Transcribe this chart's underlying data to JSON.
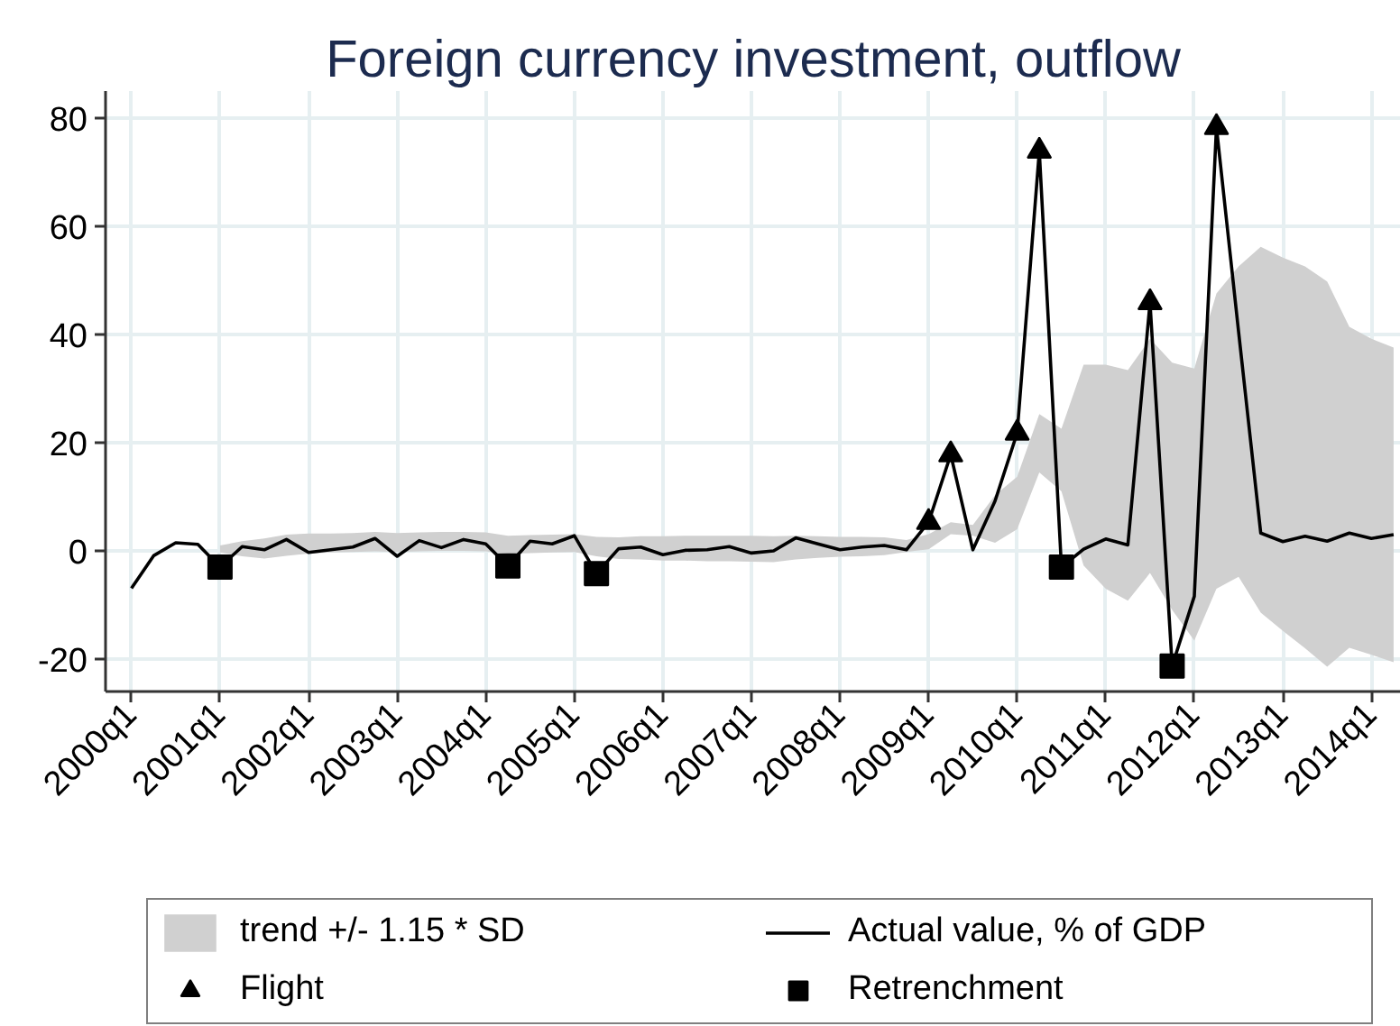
{
  "chart_data": {
    "type": "line",
    "title": "Foreign currency investment, outflow",
    "categories": [
      "2000q1",
      null,
      null,
      null,
      "2001q1",
      null,
      null,
      null,
      "2002q1",
      null,
      null,
      null,
      "2003q1",
      null,
      null,
      null,
      "2004q1",
      null,
      null,
      null,
      "2005q1",
      null,
      null,
      null,
      "2006q1",
      null,
      null,
      null,
      "2007q1",
      null,
      null,
      null,
      "2008q1",
      null,
      null,
      null,
      "2009q1",
      null,
      null,
      null,
      "2010q1",
      null,
      null,
      null,
      "2011q1",
      null,
      null,
      null,
      "2012q1",
      null,
      null,
      null,
      "2013q1",
      null,
      null,
      null,
      "2014q1",
      null
    ],
    "ylim": [
      -26,
      85
    ],
    "yticks": [
      -20,
      0,
      20,
      40,
      60,
      80
    ],
    "grid": true,
    "legend": "bottom",
    "series": [
      {
        "name": "trend +/- 1.15 * SD",
        "type": "area",
        "color": "#d0d0d0",
        "values": [
          null,
          null,
          null,
          null,
          null,
          null,
          null,
          null,
          null,
          null,
          null,
          null,
          null,
          null,
          null,
          null,
          null,
          null,
          null,
          null,
          null,
          null,
          null,
          null,
          null,
          null,
          null,
          null,
          null,
          null,
          null,
          null,
          null,
          null,
          null,
          null,
          null,
          null,
          null,
          null,
          null,
          null,
          null,
          null,
          null,
          null,
          null,
          null,
          null,
          null,
          null,
          null,
          null,
          null,
          null,
          null,
          null,
          null
        ],
        "upper": [
          null,
          null,
          null,
          null,
          1.0,
          1.8,
          2.3,
          3.0,
          3.2,
          3.2,
          3.3,
          3.5,
          3.3,
          3.4,
          3.5,
          3.5,
          3.4,
          2.8,
          2.9,
          3.0,
          3.1,
          2.6,
          2.5,
          2.7,
          2.7,
          2.8,
          2.8,
          2.8,
          2.8,
          2.7,
          2.8,
          2.7,
          2.6,
          2.6,
          2.5,
          2.0,
          3.1,
          5.3,
          4.8,
          10.3,
          13.7,
          25.3,
          22.6,
          34.4,
          34.4,
          33.4,
          39.2,
          34.8,
          33.7,
          47.6,
          52.6,
          56.2,
          54.2,
          52.6,
          49.8,
          41.4,
          39.2,
          37.6
        ],
        "lower": [
          null,
          null,
          null,
          null,
          -0.3,
          -1.0,
          -1.4,
          -0.9,
          -0.5,
          -0.3,
          -0.2,
          -0.1,
          -0.2,
          -0.1,
          0.0,
          0.0,
          -0.1,
          -0.5,
          -0.4,
          -0.3,
          -0.2,
          -1.0,
          -1.5,
          -1.6,
          -1.8,
          -1.8,
          -1.9,
          -1.9,
          -2.0,
          -2.1,
          -1.6,
          -1.3,
          -1.1,
          -1.0,
          -0.8,
          -0.2,
          0.3,
          3.1,
          2.8,
          1.5,
          4.0,
          14.5,
          11.0,
          -2.7,
          -7.0,
          -9.2,
          -4.1,
          -10.9,
          -16.6,
          -7.0,
          -4.8,
          -11.4,
          -14.8,
          -18.0,
          -21.4,
          -17.9,
          -19.2,
          -20.6
        ]
      },
      {
        "name": "Actual value, % of GDP",
        "color": "#000000",
        "values": [
          -6.9,
          -0.9,
          1.5,
          1.2,
          -3.0,
          0.8,
          0.2,
          2.1,
          -0.3,
          0.2,
          0.7,
          2.3,
          -1.0,
          1.9,
          0.6,
          2.1,
          1.3,
          -2.8,
          1.8,
          1.3,
          2.8,
          -4.2,
          0.4,
          0.7,
          -0.7,
          0.1,
          0.2,
          0.8,
          -0.4,
          0.0,
          2.4,
          1.3,
          0.2,
          0.7,
          1.0,
          0.2,
          5.3,
          17.8,
          0.2,
          9.2,
          21.8,
          73.9,
          -3.0,
          0.3,
          2.2,
          1.1,
          45.9,
          -21.3,
          -8.4,
          78.3,
          40.5,
          3.3,
          1.7,
          2.7,
          1.8,
          3.3,
          2.3,
          3.0
        ]
      },
      {
        "name": "Flight",
        "type": "scatter",
        "marker": "triangle",
        "color": "#000000",
        "values": [
          null,
          null,
          null,
          null,
          null,
          null,
          null,
          null,
          null,
          null,
          null,
          null,
          null,
          null,
          null,
          null,
          null,
          null,
          null,
          null,
          null,
          null,
          null,
          null,
          null,
          null,
          null,
          null,
          null,
          null,
          null,
          null,
          null,
          null,
          null,
          null,
          5.3,
          17.8,
          null,
          null,
          21.8,
          73.9,
          null,
          null,
          null,
          null,
          45.9,
          null,
          null,
          78.3,
          null,
          null,
          null,
          null,
          null,
          null,
          null,
          null
        ]
      },
      {
        "name": "Retrenchment",
        "type": "scatter",
        "marker": "square",
        "color": "#000000",
        "values": [
          null,
          null,
          null,
          null,
          -3.0,
          null,
          null,
          null,
          null,
          null,
          null,
          null,
          null,
          null,
          null,
          null,
          null,
          -2.8,
          null,
          null,
          null,
          -4.2,
          null,
          null,
          null,
          null,
          null,
          null,
          null,
          null,
          null,
          null,
          null,
          null,
          null,
          null,
          null,
          null,
          null,
          null,
          null,
          null,
          -3.0,
          null,
          null,
          null,
          null,
          -21.3,
          null,
          null,
          null,
          null,
          null,
          null,
          null,
          null,
          null,
          null
        ]
      }
    ]
  }
}
